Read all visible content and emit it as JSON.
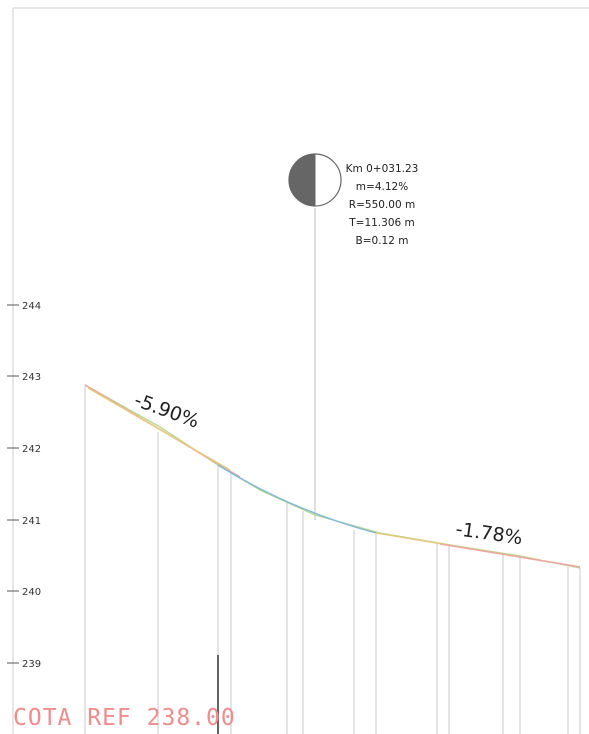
{
  "y_axis": {
    "ticks": [
      "239",
      "240",
      "241",
      "242",
      "243",
      "244"
    ]
  },
  "vertical_curve": {
    "station": "Km 0+031.23",
    "grade_diff": "m=4.12%",
    "radius": "R=550.00 m",
    "tangent": "T=11.306 m",
    "external": "B=0.12 m"
  },
  "grades": {
    "left": "-5.90%",
    "right": "-1.78%"
  },
  "reference": {
    "label": "COTA REF 238.00"
  },
  "colors": {
    "frame": "#cfcfcf",
    "ref_text": "#f28b8b",
    "grade_left": "#f2a3a3",
    "grade_right": "#e8c97a",
    "curve": "#7fb8d9",
    "terrain": "#b7d88d"
  },
  "chart_data": {
    "type": "line",
    "title": "",
    "xlabel": "",
    "ylabel": "",
    "ylim": [
      238,
      245
    ],
    "series": [
      {
        "values": [
          [
            0,
            242.82
          ],
          [
            31.23,
            241.04
          ],
          [
            85,
            240.36
          ]
        ]
      }
    ]
  }
}
